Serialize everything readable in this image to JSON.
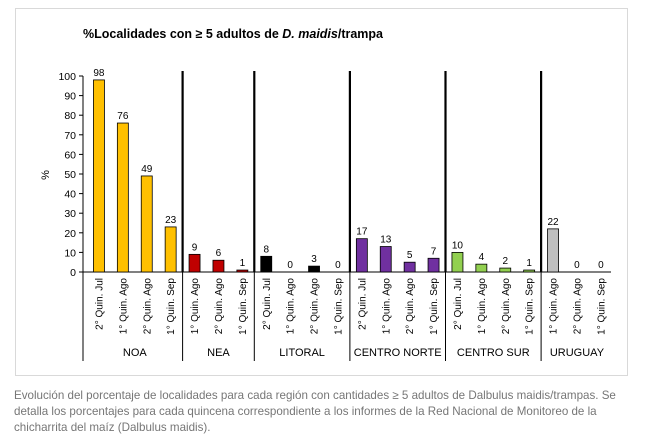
{
  "chart_data": {
    "type": "bar",
    "title_prefix": "%Localidades con ≥ 5 adultos de ",
    "title_species": "D. maidis",
    "title_suffix": "/trampa",
    "ylabel": "%",
    "ylim": [
      0,
      100
    ],
    "yticks": [
      "0",
      "10",
      "20",
      "30",
      "40",
      "50",
      "60",
      "70",
      "80",
      "90",
      "100"
    ],
    "grid": false,
    "groups": [
      {
        "name": "NOA",
        "color": "#FFC000",
        "categories": [
          "2° Quin. Jul",
          "1° Quin. Ago",
          "2° Quin. Ago",
          "1° Quin. Sep"
        ],
        "values": [
          98,
          76,
          49,
          23
        ]
      },
      {
        "name": "NEA",
        "color": "#C00000",
        "categories": [
          "1° Quin. Ago",
          "2° Quin. Ago",
          "1° Quin. Sep"
        ],
        "values": [
          9,
          6,
          1
        ]
      },
      {
        "name": "LITORAL",
        "color": "#000000",
        "categories": [
          "2° Quin. Jul",
          "1° Quin. Ago",
          "2° Quin. Ago",
          "1° Quin. Sep"
        ],
        "values": [
          8,
          0,
          3,
          0
        ]
      },
      {
        "name": "CENTRO NORTE",
        "color": "#7030A0",
        "categories": [
          "2° Quin. Jul",
          "1° Quin. Ago",
          "2° Quin. Ago",
          "1° Quin. Sep"
        ],
        "values": [
          17,
          13,
          5,
          7
        ]
      },
      {
        "name": "CENTRO SUR",
        "color": "#92D050",
        "categories": [
          "2° Quin. Jul",
          "1° Quin. Ago",
          "2° Quin. Ago",
          "1° Quin. Sep"
        ],
        "values": [
          10,
          4,
          2,
          1
        ]
      },
      {
        "name": "URUGUAY",
        "color": "#BFBFBF",
        "categories": [
          "1° Quin. Ago",
          "2° Quin. Ago",
          "1° Quin. Sep"
        ],
        "values": [
          22,
          0,
          0
        ]
      }
    ]
  },
  "caption": "Evolución del porcentaje de localidades para cada región con cantidades ≥ 5 adultos de Dalbulus maidis/trampas. Se detalla los porcentajes para cada quincena correspondiente a los informes de la Red Nacional de Monitoreo de la chicharrita del maíz (Dalbulus maidis)."
}
